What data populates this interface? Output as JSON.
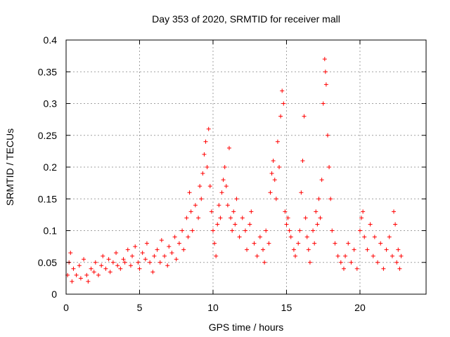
{
  "chart_data": {
    "type": "scatter",
    "title": "Day 353 of 2020, SRMTID for receiver mall",
    "xlabel": "GPS time / hours",
    "ylabel": "SRMTID / TECUs",
    "xlim": [
      0,
      24.5
    ],
    "ylim": [
      0,
      0.4
    ],
    "xticks": [
      0,
      5,
      10,
      15,
      20
    ],
    "xtick_labels": [
      "0",
      "5",
      "10",
      "15",
      "20"
    ],
    "yticks": [
      0,
      0.05,
      0.1,
      0.15,
      0.2,
      0.25,
      0.3,
      0.35,
      0.4
    ],
    "ytick_labels": [
      "0",
      "0.05",
      "0.1",
      "0.15",
      "0.2",
      "0.25",
      "0.3",
      "0.35",
      "0.4"
    ],
    "grid": true,
    "marker": "plus",
    "color": "#ff0000",
    "series": [
      {
        "name": "SRMTID",
        "points": [
          [
            0.1,
            0.03
          ],
          [
            0.2,
            0.05
          ],
          [
            0.3,
            0.065
          ],
          [
            0.4,
            0.02
          ],
          [
            0.5,
            0.04
          ],
          [
            0.7,
            0.03
          ],
          [
            0.9,
            0.045
          ],
          [
            1.0,
            0.025
          ],
          [
            1.2,
            0.055
          ],
          [
            1.4,
            0.03
          ],
          [
            1.5,
            0.02
          ],
          [
            1.7,
            0.04
          ],
          [
            1.9,
            0.035
          ],
          [
            2.0,
            0.05
          ],
          [
            2.2,
            0.03
          ],
          [
            2.4,
            0.045
          ],
          [
            2.5,
            0.06
          ],
          [
            2.7,
            0.04
          ],
          [
            2.9,
            0.055
          ],
          [
            3.0,
            0.035
          ],
          [
            3.2,
            0.05
          ],
          [
            3.4,
            0.065
          ],
          [
            3.5,
            0.045
          ],
          [
            3.7,
            0.04
          ],
          [
            3.9,
            0.055
          ],
          [
            4.0,
            0.05
          ],
          [
            4.2,
            0.07
          ],
          [
            4.4,
            0.045
          ],
          [
            4.5,
            0.06
          ],
          [
            4.7,
            0.075
          ],
          [
            4.9,
            0.05
          ],
          [
            5.0,
            0.04
          ],
          [
            5.2,
            0.065
          ],
          [
            5.4,
            0.055
          ],
          [
            5.5,
            0.08
          ],
          [
            5.7,
            0.05
          ],
          [
            5.9,
            0.035
          ],
          [
            6.0,
            0.06
          ],
          [
            6.2,
            0.07
          ],
          [
            6.4,
            0.05
          ],
          [
            6.5,
            0.085
          ],
          [
            6.7,
            0.06
          ],
          [
            6.9,
            0.045
          ],
          [
            7.0,
            0.075
          ],
          [
            7.2,
            0.065
          ],
          [
            7.4,
            0.09
          ],
          [
            7.5,
            0.055
          ],
          [
            7.7,
            0.08
          ],
          [
            7.9,
            0.1
          ],
          [
            8.0,
            0.07
          ],
          [
            8.2,
            0.12
          ],
          [
            8.3,
            0.09
          ],
          [
            8.4,
            0.16
          ],
          [
            8.5,
            0.13
          ],
          [
            8.6,
            0.1
          ],
          [
            8.8,
            0.14
          ],
          [
            9.0,
            0.12
          ],
          [
            9.1,
            0.17
          ],
          [
            9.2,
            0.15
          ],
          [
            9.3,
            0.19
          ],
          [
            9.4,
            0.22
          ],
          [
            9.5,
            0.24
          ],
          [
            9.6,
            0.2
          ],
          [
            9.7,
            0.26
          ],
          [
            9.8,
            0.17
          ],
          [
            9.9,
            0.13
          ],
          [
            10.0,
            0.1
          ],
          [
            10.1,
            0.08
          ],
          [
            10.2,
            0.06
          ],
          [
            10.3,
            0.11
          ],
          [
            10.4,
            0.14
          ],
          [
            10.5,
            0.12
          ],
          [
            10.6,
            0.16
          ],
          [
            10.7,
            0.18
          ],
          [
            10.8,
            0.2
          ],
          [
            10.9,
            0.17
          ],
          [
            11.0,
            0.14
          ],
          [
            11.1,
            0.23
          ],
          [
            11.2,
            0.12
          ],
          [
            11.3,
            0.1
          ],
          [
            11.4,
            0.13
          ],
          [
            11.5,
            0.11
          ],
          [
            11.6,
            0.15
          ],
          [
            11.8,
            0.09
          ],
          [
            12.0,
            0.12
          ],
          [
            12.2,
            0.1
          ],
          [
            12.3,
            0.07
          ],
          [
            12.5,
            0.11
          ],
          [
            12.6,
            0.13
          ],
          [
            12.8,
            0.08
          ],
          [
            13.0,
            0.06
          ],
          [
            13.2,
            0.09
          ],
          [
            13.4,
            0.07
          ],
          [
            13.5,
            0.05
          ],
          [
            13.6,
            0.1
          ],
          [
            13.8,
            0.08
          ],
          [
            13.9,
            0.16
          ],
          [
            14.0,
            0.19
          ],
          [
            14.1,
            0.21
          ],
          [
            14.2,
            0.18
          ],
          [
            14.3,
            0.15
          ],
          [
            14.4,
            0.24
          ],
          [
            14.5,
            0.2
          ],
          [
            14.6,
            0.28
          ],
          [
            14.7,
            0.32
          ],
          [
            14.8,
            0.3
          ],
          [
            14.9,
            0.13
          ],
          [
            15.0,
            0.11
          ],
          [
            15.1,
            0.12
          ],
          [
            15.2,
            0.1
          ],
          [
            15.3,
            0.09
          ],
          [
            15.5,
            0.07
          ],
          [
            15.6,
            0.06
          ],
          [
            15.8,
            0.08
          ],
          [
            15.9,
            0.1
          ],
          [
            16.0,
            0.16
          ],
          [
            16.1,
            0.21
          ],
          [
            16.2,
            0.28
          ],
          [
            16.3,
            0.12
          ],
          [
            16.4,
            0.09
          ],
          [
            16.5,
            0.07
          ],
          [
            16.6,
            0.05
          ],
          [
            16.8,
            0.1
          ],
          [
            16.9,
            0.08
          ],
          [
            17.0,
            0.13
          ],
          [
            17.1,
            0.11
          ],
          [
            17.2,
            0.15
          ],
          [
            17.3,
            0.12
          ],
          [
            17.4,
            0.18
          ],
          [
            17.5,
            0.3
          ],
          [
            17.6,
            0.37
          ],
          [
            17.65,
            0.35
          ],
          [
            17.7,
            0.33
          ],
          [
            17.8,
            0.25
          ],
          [
            17.9,
            0.2
          ],
          [
            18.0,
            0.15
          ],
          [
            18.1,
            0.1
          ],
          [
            18.3,
            0.08
          ],
          [
            18.5,
            0.06
          ],
          [
            18.7,
            0.05
          ],
          [
            18.9,
            0.04
          ],
          [
            19.0,
            0.06
          ],
          [
            19.2,
            0.08
          ],
          [
            19.4,
            0.05
          ],
          [
            19.6,
            0.07
          ],
          [
            19.8,
            0.04
          ],
          [
            20.0,
            0.1
          ],
          [
            20.1,
            0.12
          ],
          [
            20.2,
            0.13
          ],
          [
            20.3,
            0.09
          ],
          [
            20.5,
            0.07
          ],
          [
            20.7,
            0.11
          ],
          [
            20.9,
            0.06
          ],
          [
            21.0,
            0.09
          ],
          [
            21.2,
            0.05
          ],
          [
            21.4,
            0.08
          ],
          [
            21.6,
            0.04
          ],
          [
            21.8,
            0.07
          ],
          [
            22.0,
            0.09
          ],
          [
            22.2,
            0.06
          ],
          [
            22.3,
            0.13
          ],
          [
            22.4,
            0.11
          ],
          [
            22.5,
            0.05
          ],
          [
            22.6,
            0.07
          ],
          [
            22.7,
            0.04
          ],
          [
            22.8,
            0.06
          ]
        ]
      }
    ]
  }
}
